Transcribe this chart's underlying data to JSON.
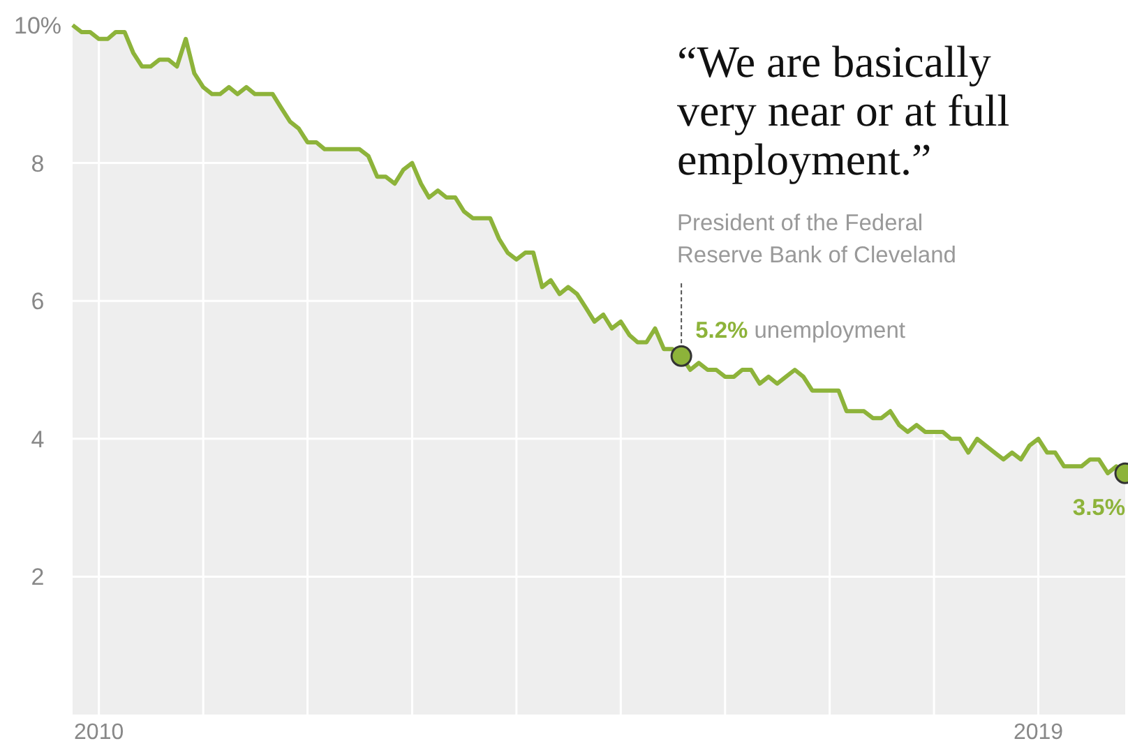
{
  "chart_data": {
    "type": "area",
    "annotations": [
      "“We are basically very near or at full employment.”",
      "President of the Federal Reserve Bank of Cleveland",
      {
        "text": "5.2% unemployment",
        "x": "2015-08",
        "y": 5.2
      },
      {
        "text": "3.5%",
        "x": "2019-11",
        "y": 3.5
      }
    ],
    "x": [
      "2009-10",
      "2009-11",
      "2009-12",
      "2010-01",
      "2010-02",
      "2010-03",
      "2010-04",
      "2010-05",
      "2010-06",
      "2010-07",
      "2010-08",
      "2010-09",
      "2010-10",
      "2010-11",
      "2010-12",
      "2011-01",
      "2011-02",
      "2011-03",
      "2011-04",
      "2011-05",
      "2011-06",
      "2011-07",
      "2011-08",
      "2011-09",
      "2011-10",
      "2011-11",
      "2011-12",
      "2012-01",
      "2012-02",
      "2012-03",
      "2012-04",
      "2012-05",
      "2012-06",
      "2012-07",
      "2012-08",
      "2012-09",
      "2012-10",
      "2012-11",
      "2012-12",
      "2013-01",
      "2013-02",
      "2013-03",
      "2013-04",
      "2013-05",
      "2013-06",
      "2013-07",
      "2013-08",
      "2013-09",
      "2013-10",
      "2013-11",
      "2013-12",
      "2014-01",
      "2014-02",
      "2014-03",
      "2014-04",
      "2014-05",
      "2014-06",
      "2014-07",
      "2014-08",
      "2014-09",
      "2014-10",
      "2014-11",
      "2014-12",
      "2015-01",
      "2015-02",
      "2015-03",
      "2015-04",
      "2015-05",
      "2015-06",
      "2015-07",
      "2015-08",
      "2015-09",
      "2015-10",
      "2015-11",
      "2015-12",
      "2016-01",
      "2016-02",
      "2016-03",
      "2016-04",
      "2016-05",
      "2016-06",
      "2016-07",
      "2016-08",
      "2016-09",
      "2016-10",
      "2016-11",
      "2016-12",
      "2017-01",
      "2017-02",
      "2017-03",
      "2017-04",
      "2017-05",
      "2017-06",
      "2017-07",
      "2017-08",
      "2017-09",
      "2017-10",
      "2017-11",
      "2017-12",
      "2018-01",
      "2018-02",
      "2018-03",
      "2018-04",
      "2018-05",
      "2018-06",
      "2018-07",
      "2018-08",
      "2018-09",
      "2018-10",
      "2018-11",
      "2018-12",
      "2019-01",
      "2019-02",
      "2019-03",
      "2019-04",
      "2019-05",
      "2019-06",
      "2019-07",
      "2019-08",
      "2019-09",
      "2019-10",
      "2019-11"
    ],
    "series": [
      {
        "color": "#8db33a",
        "values": [
          10.0,
          9.9,
          9.9,
          9.8,
          9.8,
          9.9,
          9.9,
          9.6,
          9.4,
          9.4,
          9.5,
          9.5,
          9.4,
          9.8,
          9.3,
          9.1,
          9.0,
          9.0,
          9.1,
          9.0,
          9.1,
          9.0,
          9.0,
          9.0,
          8.8,
          8.6,
          8.5,
          8.3,
          8.3,
          8.2,
          8.2,
          8.2,
          8.2,
          8.2,
          8.1,
          7.8,
          7.8,
          7.7,
          7.9,
          8.0,
          7.7,
          7.5,
          7.6,
          7.5,
          7.5,
          7.3,
          7.2,
          7.2,
          7.2,
          6.9,
          6.7,
          6.6,
          6.7,
          6.7,
          6.2,
          6.3,
          6.1,
          6.2,
          6.1,
          5.9,
          5.7,
          5.8,
          5.6,
          5.7,
          5.5,
          5.4,
          5.4,
          5.6,
          5.3,
          5.3,
          5.2,
          5.0,
          5.1,
          5.0,
          5.0,
          4.9,
          4.9,
          5.0,
          5.0,
          4.8,
          4.9,
          4.8,
          4.9,
          5.0,
          4.9,
          4.7,
          4.7,
          4.7,
          4.7,
          4.4,
          4.4,
          4.4,
          4.3,
          4.3,
          4.4,
          4.2,
          4.1,
          4.2,
          4.1,
          4.1,
          4.1,
          4.0,
          4.0,
          3.8,
          4.0,
          3.9,
          3.8,
          3.7,
          3.8,
          3.7,
          3.9,
          4.0,
          3.8,
          3.8,
          3.6,
          3.6,
          3.6,
          3.7,
          3.7,
          3.5,
          3.6,
          3.5
        ]
      }
    ],
    "xlim": [
      "2009-10",
      "2019-11"
    ],
    "xticks": [
      {
        "value": "2010",
        "label": "2010"
      },
      {
        "value": "2011",
        "label": null
      },
      {
        "value": "2012",
        "label": null
      },
      {
        "value": "2013",
        "label": null
      },
      {
        "value": "2014",
        "label": null
      },
      {
        "value": "2015",
        "label": null
      },
      {
        "value": "2016",
        "label": null
      },
      {
        "value": "2017",
        "label": null
      },
      {
        "value": "2018",
        "label": null
      },
      {
        "value": "2019",
        "label": "2019"
      }
    ],
    "ylim": [
      0,
      10
    ],
    "yticks": [
      {
        "value": 10,
        "label": "10%"
      },
      8,
      6,
      4,
      2
    ],
    "grid": true,
    "marker": "none",
    "line_style": "solid"
  }
}
